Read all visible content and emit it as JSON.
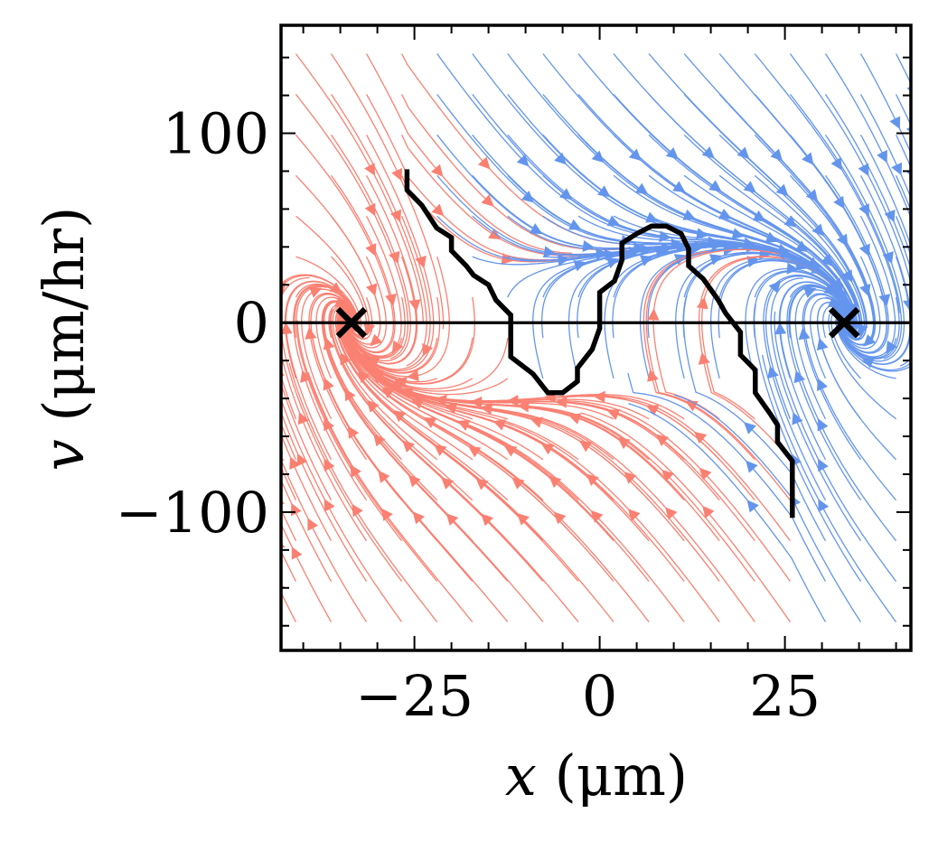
{
  "chart_data": {
    "type": "streamplot",
    "title": "",
    "xlabel": "x (μm)",
    "ylabel": "v (μm/hr)",
    "xlabel_var": "x",
    "xlabel_unit": " (μm)",
    "ylabel_var": "v",
    "ylabel_unit": " (μm/hr)",
    "xlim": [
      -43,
      42
    ],
    "ylim": [
      -173,
      157
    ],
    "xticks": [
      {
        "value": -25,
        "label": "−25"
      },
      {
        "value": 0,
        "label": "0"
      },
      {
        "value": 25,
        "label": "25"
      }
    ],
    "yticks": [
      {
        "value": 100,
        "label": "100"
      },
      {
        "value": 0,
        "label": "0"
      },
      {
        "value": -100,
        "label": "−100"
      }
    ],
    "x_minor_step": 5,
    "y_minor_step": 20,
    "fixed_points": [
      {
        "x": -33.5,
        "v": 0
      },
      {
        "x": 33,
        "v": 0
      }
    ],
    "separatrix": [
      [
        -26,
        81
      ],
      [
        -26,
        70
      ],
      [
        -24,
        62
      ],
      [
        -23,
        56
      ],
      [
        -22,
        50
      ],
      [
        -20,
        45
      ],
      [
        -20,
        38
      ],
      [
        -18,
        30
      ],
      [
        -17,
        25
      ],
      [
        -15,
        20
      ],
      [
        -14,
        12
      ],
      [
        -12,
        4
      ],
      [
        -12,
        -18
      ],
      [
        -9,
        -27
      ],
      [
        -7,
        -37
      ],
      [
        -5,
        -37
      ],
      [
        -3,
        -31
      ],
      [
        -3,
        -24
      ],
      [
        -1,
        -14
      ],
      [
        0,
        -3
      ],
      [
        0,
        16
      ],
      [
        2,
        22
      ],
      [
        3,
        33
      ],
      [
        3,
        42
      ],
      [
        5,
        47
      ],
      [
        7,
        51
      ],
      [
        9,
        51
      ],
      [
        11,
        47
      ],
      [
        12,
        39
      ],
      [
        12,
        30
      ],
      [
        14,
        23
      ],
      [
        16,
        12
      ],
      [
        17,
        5
      ],
      [
        19,
        -5
      ],
      [
        19,
        -17
      ],
      [
        21,
        -25
      ],
      [
        21,
        -37
      ],
      [
        23,
        -48
      ],
      [
        24,
        -54
      ],
      [
        24,
        -63
      ],
      [
        26,
        -73
      ],
      [
        26,
        -103
      ]
    ],
    "basins": [
      {
        "name": "left attractor basin",
        "color": "#fa8072"
      },
      {
        "name": "right attractor basin",
        "color": "#6495ed"
      }
    ],
    "colors": {
      "left": "#fa8072",
      "right": "#6495ed",
      "separatrix": "#000000"
    }
  }
}
